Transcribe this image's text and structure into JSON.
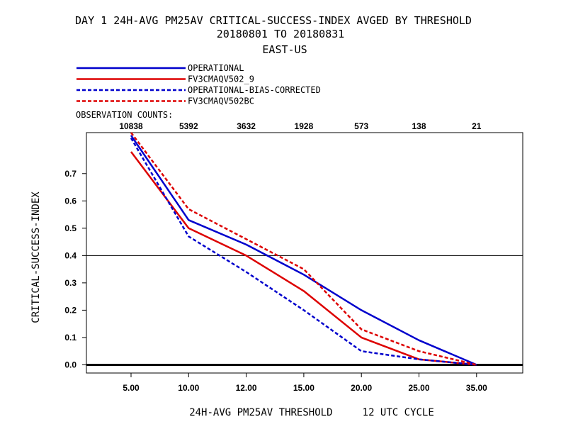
{
  "chart_data": {
    "type": "line",
    "title": "DAY 1   24H-AVG PM25AV CRITICAL-SUCCESS-INDEX   AVGED BY THRESHOLD",
    "subtitle": "20180801 TO 20180831",
    "region": "EAST-US",
    "xlabel": "24H-AVG PM25AV THRESHOLD     12 UTC CYCLE",
    "ylabel": "CRITICAL-SUCCESS-INDEX",
    "categories": [
      "5.00",
      "10.00",
      "12.00",
      "15.00",
      "20.00",
      "25.00",
      "35.00"
    ],
    "observation_counts_label": "OBSERVATION COUNTS:",
    "observation_counts": [
      "10838",
      "5392",
      "3632",
      "1928",
      "573",
      "138",
      "21"
    ],
    "ylim": [
      -0.03,
      0.85
    ],
    "yticks": [
      "0.0",
      "0.1",
      "0.2",
      "0.3",
      "0.4",
      "0.5",
      "0.6",
      "0.7"
    ],
    "reference_line": 0.4,
    "legend_position": "top-left",
    "series": [
      {
        "name": "OPERATIONAL",
        "color": "#0000cc",
        "dash": "solid",
        "values": [
          0.84,
          0.53,
          0.44,
          0.33,
          0.2,
          0.09,
          0.0
        ]
      },
      {
        "name": "FV3CMAQV502_9",
        "color": "#dd0000",
        "dash": "solid",
        "values": [
          0.78,
          0.5,
          0.4,
          0.27,
          0.1,
          0.02,
          0.0
        ]
      },
      {
        "name": "OPERATIONAL-BIAS-CORRECTED",
        "color": "#0000cc",
        "dash": "dashed",
        "values": [
          0.83,
          0.47,
          0.34,
          0.2,
          0.05,
          0.02,
          0.0
        ]
      },
      {
        "name": "FV3CMAQV502BC",
        "color": "#dd0000",
        "dash": "dashed",
        "values": [
          0.85,
          0.57,
          0.46,
          0.35,
          0.13,
          0.05,
          0.0
        ]
      }
    ]
  }
}
